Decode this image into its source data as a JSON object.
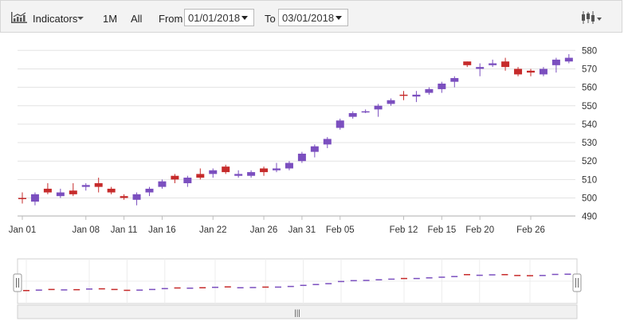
{
  "toolbar": {
    "indicators_label": "Indicators",
    "range_1m": "1M",
    "range_all": "All",
    "from_label": "From",
    "from_value": "01/01/2018",
    "to_label": "To",
    "to_value": "03/01/2018",
    "icons": [
      "indicator-chart-icon",
      "candlestick-series-icon"
    ]
  },
  "navigator": {
    "scrollbar_grip": "|||"
  },
  "colors": {
    "bullish": "#7b4fbf",
    "bearish": "#c62b2b",
    "wick": "#8b5fc7"
  },
  "chart_data": {
    "type": "candlestick",
    "x_tick_labels": [
      "Jan 01",
      "Jan 08",
      "Jan 11",
      "Jan 16",
      "Jan 22",
      "Jan 26",
      "Jan 31",
      "Feb 05",
      "Feb 12",
      "Feb 15",
      "Feb 20",
      "Feb 26"
    ],
    "y_ticks": [
      490,
      500,
      510,
      520,
      530,
      540,
      550,
      560,
      570,
      580
    ],
    "ylim": [
      490,
      582
    ],
    "grid": true,
    "y_axis_side": "right",
    "candles": [
      {
        "x": 0,
        "o": 500,
        "c": 500,
        "h": 503,
        "l": 497,
        "dir": "down"
      },
      {
        "x": 1,
        "o": 498,
        "c": 502,
        "h": 503,
        "l": 496,
        "dir": "up"
      },
      {
        "x": 2,
        "o": 505,
        "c": 503,
        "h": 508,
        "l": 502,
        "dir": "down"
      },
      {
        "x": 3,
        "o": 501,
        "c": 503,
        "h": 505,
        "l": 500,
        "dir": "up"
      },
      {
        "x": 4,
        "o": 504,
        "c": 502,
        "h": 508,
        "l": 501,
        "dir": "down"
      },
      {
        "x": 5,
        "o": 506,
        "c": 507,
        "h": 508,
        "l": 504,
        "dir": "up"
      },
      {
        "x": 6,
        "o": 508,
        "c": 506,
        "h": 511,
        "l": 503,
        "dir": "down"
      },
      {
        "x": 7,
        "o": 505,
        "c": 503,
        "h": 506,
        "l": 502,
        "dir": "down"
      },
      {
        "x": 8,
        "o": 501,
        "c": 500,
        "h": 502,
        "l": 499,
        "dir": "down"
      },
      {
        "x": 9,
        "o": 499,
        "c": 502,
        "h": 503,
        "l": 496,
        "dir": "up"
      },
      {
        "x": 10,
        "o": 503,
        "c": 505,
        "h": 506,
        "l": 501,
        "dir": "up"
      },
      {
        "x": 11,
        "o": 506,
        "c": 509,
        "h": 510,
        "l": 505,
        "dir": "up"
      },
      {
        "x": 12,
        "o": 512,
        "c": 510,
        "h": 513,
        "l": 508,
        "dir": "down"
      },
      {
        "x": 13,
        "o": 508,
        "c": 511,
        "h": 512,
        "l": 506,
        "dir": "up"
      },
      {
        "x": 14,
        "o": 513,
        "c": 511,
        "h": 516,
        "l": 510,
        "dir": "down"
      },
      {
        "x": 15,
        "o": 513,
        "c": 515,
        "h": 516,
        "l": 511,
        "dir": "up"
      },
      {
        "x": 16,
        "o": 517,
        "c": 514,
        "h": 518,
        "l": 513,
        "dir": "down"
      },
      {
        "x": 17,
        "o": 512,
        "c": 513,
        "h": 515,
        "l": 511,
        "dir": "up"
      },
      {
        "x": 18,
        "o": 512,
        "c": 514,
        "h": 515,
        "l": 511,
        "dir": "up"
      },
      {
        "x": 19,
        "o": 516,
        "c": 514,
        "h": 517,
        "l": 512,
        "dir": "down"
      },
      {
        "x": 20,
        "o": 515,
        "c": 516,
        "h": 519,
        "l": 514,
        "dir": "up"
      },
      {
        "x": 21,
        "o": 516,
        "c": 519,
        "h": 520,
        "l": 515,
        "dir": "up"
      },
      {
        "x": 22,
        "o": 520,
        "c": 524,
        "h": 525,
        "l": 519,
        "dir": "up"
      },
      {
        "x": 23,
        "o": 525,
        "c": 528,
        "h": 529,
        "l": 522,
        "dir": "up"
      },
      {
        "x": 24,
        "o": 529,
        "c": 532,
        "h": 533,
        "l": 527,
        "dir": "up"
      },
      {
        "x": 25,
        "o": 538,
        "c": 542,
        "h": 543,
        "l": 537,
        "dir": "up"
      },
      {
        "x": 26,
        "o": 544,
        "c": 546,
        "h": 547,
        "l": 543,
        "dir": "up"
      },
      {
        "x": 27,
        "o": 547,
        "c": 547,
        "h": 548,
        "l": 546,
        "dir": "up"
      },
      {
        "x": 28,
        "o": 548,
        "c": 550,
        "h": 551,
        "l": 544,
        "dir": "up"
      },
      {
        "x": 29,
        "o": 551,
        "c": 553,
        "h": 554,
        "l": 550,
        "dir": "up"
      },
      {
        "x": 30,
        "o": 556,
        "c": 556,
        "h": 558,
        "l": 553,
        "dir": "down"
      },
      {
        "x": 31,
        "o": 555,
        "c": 556,
        "h": 558,
        "l": 552,
        "dir": "up"
      },
      {
        "x": 32,
        "o": 557,
        "c": 559,
        "h": 560,
        "l": 556,
        "dir": "up"
      },
      {
        "x": 33,
        "o": 559,
        "c": 562,
        "h": 563,
        "l": 557,
        "dir": "up"
      },
      {
        "x": 34,
        "o": 563,
        "c": 565,
        "h": 566,
        "l": 560,
        "dir": "up"
      },
      {
        "x": 35,
        "o": 574,
        "c": 572,
        "h": 574,
        "l": 571,
        "dir": "down"
      },
      {
        "x": 36,
        "o": 570,
        "c": 571,
        "h": 573,
        "l": 566,
        "dir": "up"
      },
      {
        "x": 37,
        "o": 572,
        "c": 573,
        "h": 575,
        "l": 571,
        "dir": "up"
      },
      {
        "x": 38,
        "o": 574,
        "c": 571,
        "h": 576,
        "l": 569,
        "dir": "down"
      },
      {
        "x": 39,
        "o": 570,
        "c": 567,
        "h": 571,
        "l": 566,
        "dir": "down"
      },
      {
        "x": 40,
        "o": 569,
        "c": 568,
        "h": 570,
        "l": 566,
        "dir": "down"
      },
      {
        "x": 41,
        "o": 567,
        "c": 570,
        "h": 571,
        "l": 566,
        "dir": "up"
      },
      {
        "x": 42,
        "o": 572,
        "c": 575,
        "h": 576,
        "l": 568,
        "dir": "up"
      },
      {
        "x": 43,
        "o": 574,
        "c": 576,
        "h": 578,
        "l": 573,
        "dir": "up"
      }
    ]
  }
}
